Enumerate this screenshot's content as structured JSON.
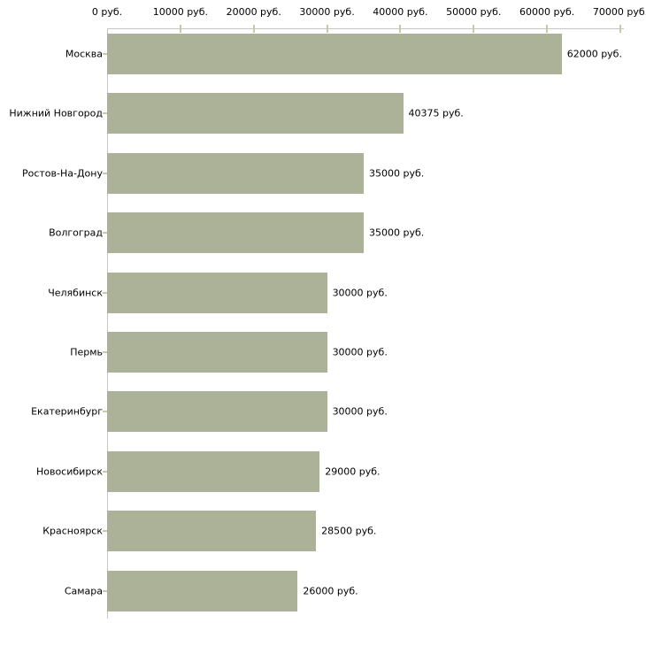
{
  "chart_data": {
    "type": "bar",
    "orientation": "horizontal",
    "title": "",
    "xlabel": "",
    "ylabel": "",
    "unit": "руб.",
    "xlim": [
      0,
      70000
    ],
    "grid": false,
    "legend": null,
    "categories": [
      "Москва",
      "Нижний Новгород",
      "Ростов-На-Дону",
      "Волгоград",
      "Челябинск",
      "Пермь",
      "Екатеринбург",
      "Новосибирск",
      "Красноярск",
      "Самара"
    ],
    "values": [
      62000,
      40375,
      35000,
      35000,
      30000,
      30000,
      30000,
      29000,
      28500,
      26000
    ],
    "value_labels": [
      "62000 руб.",
      "40375 руб.",
      "35000 руб.",
      "35000 руб.",
      "30000 руб.",
      "30000 руб.",
      "30000 руб.",
      "29000 руб.",
      "28500 руб.",
      "26000 руб."
    ],
    "x_ticks": [
      0,
      10000,
      20000,
      30000,
      40000,
      50000,
      60000,
      70000
    ],
    "x_tick_labels": [
      "0 руб.",
      "10000 руб.",
      "20000 руб.",
      "30000 руб.",
      "40000 руб.",
      "50000 руб.",
      "60000 руб.",
      "70000 руб."
    ],
    "colors": {
      "bar_fill": "#acb298",
      "tick_mark": "#c9c9a3",
      "axis_line": "#c6c6c6",
      "text": "#000000",
      "background": "#ffffff"
    }
  }
}
